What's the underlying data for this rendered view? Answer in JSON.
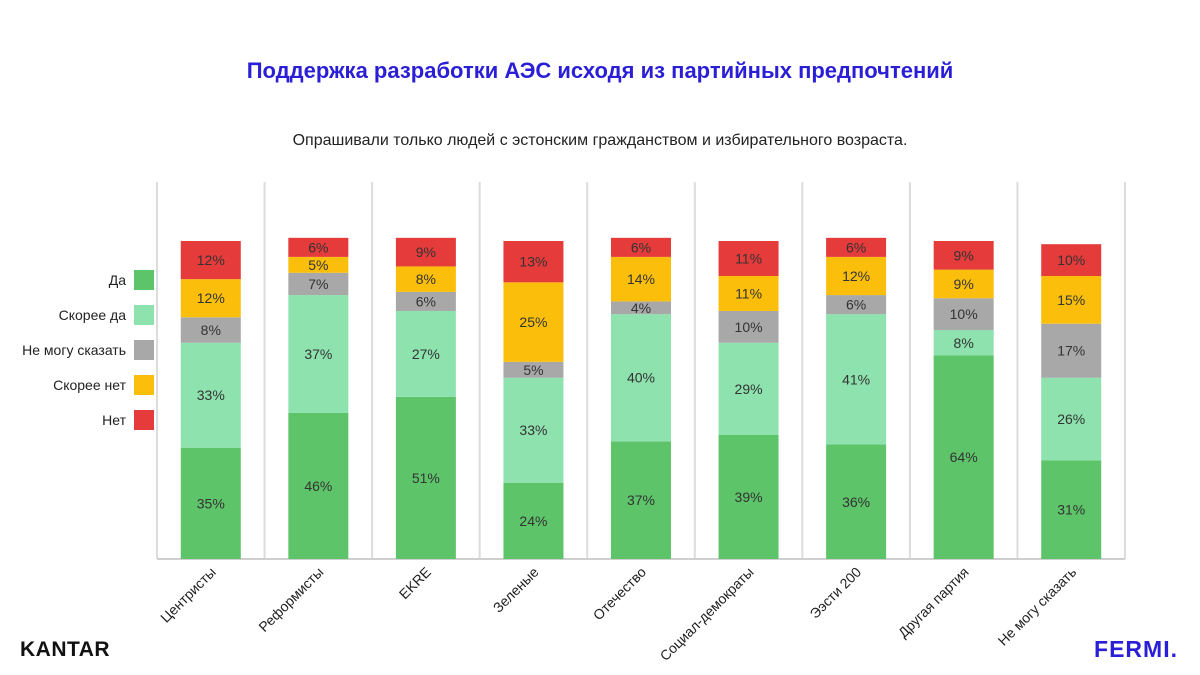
{
  "title": "Поддержка разработки АЭС исходя из партийных предпочтений",
  "subtitle": "Опрашивали только людей с эстонским гражданством и избирательного возраста.",
  "brands": {
    "left": "KANTAR",
    "right": "FERMI."
  },
  "legend": [
    {
      "label": "Да",
      "color": "#5ec46a"
    },
    {
      "label": "Скорее да",
      "color": "#8de2ae"
    },
    {
      "label": "Не могу сказать",
      "color": "#a8a8a8"
    },
    {
      "label": "Скорее нет",
      "color": "#fbbf0b"
    },
    {
      "label": "Нет",
      "color": "#e53b3b"
    }
  ],
  "chart_data": {
    "type": "bar",
    "stacked": true,
    "categories": [
      "Центристы",
      "Реформисты",
      "EKRE",
      "Зеленые",
      "Отечество",
      "Социал-демократы",
      "Ээсти 200",
      "Другая партия",
      "Не могу сказать"
    ],
    "series": [
      {
        "name": "Да",
        "color": "#5ec46a",
        "values": [
          35,
          46,
          51,
          24,
          37,
          39,
          36,
          64,
          31
        ]
      },
      {
        "name": "Скорее да",
        "color": "#8de2ae",
        "values": [
          33,
          37,
          27,
          33,
          40,
          29,
          41,
          8,
          26
        ]
      },
      {
        "name": "Не могу сказать",
        "color": "#a8a8a8",
        "values": [
          8,
          7,
          6,
          5,
          4,
          10,
          6,
          10,
          17
        ]
      },
      {
        "name": "Скорее нет",
        "color": "#fbbf0b",
        "values": [
          12,
          5,
          8,
          25,
          14,
          11,
          12,
          9,
          15
        ]
      },
      {
        "name": "Нет",
        "color": "#e53b3b",
        "values": [
          12,
          6,
          9,
          13,
          6,
          11,
          6,
          9,
          10
        ]
      }
    ],
    "value_suffix": "%",
    "legend_position": "left",
    "grid": true
  }
}
